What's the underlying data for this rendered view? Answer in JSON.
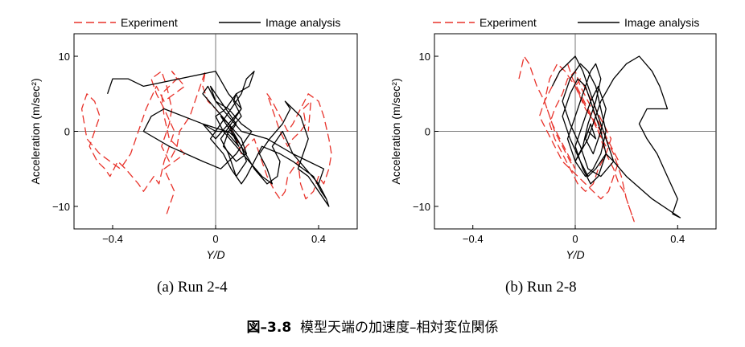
{
  "colors": {
    "experiment": "#e8322a",
    "analysis": "#000000",
    "axis": "#000000",
    "zeroline": "#555555"
  },
  "figure": {
    "number": "図–3.8",
    "title": "模型天端の加速度–相対変位関係"
  },
  "captions": {
    "a": "(a) Run 2-4",
    "b": "(b) Run 2-8"
  },
  "chart_data": [
    {
      "type": "line",
      "id": "run-2-4",
      "caption": "(a) Run 2-4",
      "xlabel": "Y/D",
      "ylabel": "Acceleration (m/sec²)",
      "xlim": [
        -0.55,
        0.55
      ],
      "ylim": [
        -13,
        13
      ],
      "xticks": [
        -0.4,
        0,
        0.4
      ],
      "xtick_labels": [
        "−0.4",
        "0",
        "0.4"
      ],
      "yticks": [
        -10,
        0,
        10
      ],
      "ytick_labels": [
        "−10",
        "0",
        "10"
      ],
      "zero_lines": true,
      "legend": {
        "position": "top",
        "entries": [
          "Experiment",
          "Image analysis"
        ]
      },
      "series": [
        {
          "name": "Experiment",
          "style": "dashed",
          "x": [
            -0.19,
            -0.16,
            -0.2,
            -0.12,
            -0.18,
            -0.2,
            -0.21,
            -0.15,
            -0.17,
            -0.12,
            -0.2,
            -0.23,
            -0.27,
            -0.3,
            -0.33,
            -0.37,
            -0.41,
            -0.45,
            -0.5,
            -0.52,
            -0.5,
            -0.47,
            -0.45,
            -0.47,
            -0.49,
            -0.46,
            -0.43,
            -0.41,
            -0.38,
            -0.35,
            -0.3,
            -0.28,
            -0.24,
            -0.22,
            -0.2,
            -0.18,
            -0.16,
            -0.2,
            -0.23,
            -0.25,
            -0.21,
            -0.19,
            -0.17,
            -0.18,
            -0.21,
            -0.18,
            -0.15,
            -0.14,
            -0.1,
            -0.08,
            -0.06,
            -0.04,
            -0.05,
            -0.03,
            0.0,
            0.05,
            0.08,
            0.1,
            0.12,
            0.15,
            0.18,
            0.2,
            0.23,
            0.25,
            0.27,
            0.28,
            0.3,
            0.32,
            0.33,
            0.35,
            0.38,
            0.4,
            0.42,
            0.44,
            0.45,
            0.44,
            0.42,
            0.4,
            0.36,
            0.33,
            0.3,
            0.28,
            0.25,
            0.22,
            0.2,
            0.22,
            0.25,
            0.28,
            0.3,
            0.33,
            0.35,
            0.34,
            0.37,
            0.36
          ],
          "y": [
            -11,
            -8,
            -5,
            -3,
            -1,
            2,
            5,
            7,
            8,
            6,
            4,
            6,
            3,
            0,
            -3,
            -5,
            -4,
            -3,
            -1,
            3,
            5,
            4,
            2,
            0,
            -2,
            -4,
            -5,
            -6,
            -4,
            -5,
            -7,
            -8,
            -6,
            -7,
            -4,
            -2,
            0,
            3,
            5,
            7,
            8,
            6,
            3,
            1,
            -2,
            -4,
            -2,
            0,
            2,
            4,
            6,
            8,
            6,
            4,
            3,
            1,
            -1,
            -3,
            -2,
            -1,
            -4,
            -6,
            -8,
            -9,
            -8,
            -6,
            -5,
            -4,
            -7,
            -9,
            -8,
            -6,
            -7,
            -5,
            -3,
            -1,
            2,
            4,
            5,
            3,
            1,
            0,
            2,
            4,
            5,
            3,
            0,
            -2,
            -1,
            0,
            1,
            3,
            4,
            0
          ]
        },
        {
          "name": "Image analysis",
          "style": "solid",
          "x": [
            -0.42,
            -0.4,
            -0.34,
            -0.28,
            0.0,
            0.05,
            0.1,
            0.05,
            0.0,
            -0.05,
            -0.2,
            -0.25,
            -0.28,
            -0.18,
            -0.05,
            0.02,
            0.08,
            0.12,
            0.14,
            0.1,
            0.05,
            0.0,
            -0.03,
            -0.05,
            0.0,
            0.05,
            0.1,
            0.15,
            0.2,
            0.24,
            0.25,
            0.22,
            0.26,
            0.3,
            0.35,
            0.4,
            0.43,
            0.41,
            0.38,
            0.3,
            0.25,
            0.18,
            0.15,
            0.12,
            0.1,
            0.06,
            0.03,
            -0.02,
            0.02,
            0.06,
            0.1,
            0.12,
            0.15,
            0.13,
            0.08,
            0.04,
            0.0,
            0.03,
            0.08,
            0.13,
            0.18,
            0.22,
            0.2,
            0.17,
            0.21,
            0.26,
            0.29,
            0.27,
            0.3,
            0.33,
            0.36,
            0.34,
            0.32,
            0.36,
            0.4,
            0.44,
            0.43,
            0.4,
            0.42,
            0.3,
            0.2,
            0.1,
            0.05,
            0.0,
            -0.02,
            0.04,
            0.08,
            0.06,
            0.1,
            0.12,
            0.08,
            0.05,
            0.02,
            0.06,
            0.1,
            0.08,
            0.07,
            0.1,
            0.05,
            0.03,
            0.08,
            0.12,
            0.1,
            0.05,
            0.02,
            0.06,
            0.09,
            0.04,
            -0.05,
            0.0,
            0.05,
            0.08,
            0.06
          ],
          "y": [
            5,
            7,
            7,
            6,
            8,
            5,
            3,
            1,
            -1,
            1,
            3,
            2,
            0,
            -2,
            -4,
            -5,
            -3,
            -1,
            0,
            1,
            3,
            4,
            6,
            5,
            3,
            1,
            -2,
            -5,
            -7,
            -6,
            -4,
            -2,
            0,
            -3,
            -5,
            -7,
            -9,
            -8,
            -6,
            -4,
            -3,
            -2,
            -4,
            -6,
            -7,
            -5,
            -3,
            -1,
            1,
            3,
            5,
            7,
            8,
            6,
            5,
            3,
            2,
            0,
            -2,
            -4,
            -6,
            -7,
            -5,
            -3,
            -1,
            1,
            3,
            4,
            3,
            2,
            -1,
            -3,
            -5,
            -6,
            -8,
            -10,
            -9,
            -7,
            -5,
            -3,
            -1,
            0,
            2,
            4,
            6,
            3,
            1,
            0,
            -2,
            -4,
            -6,
            -3,
            -1,
            1,
            3,
            5,
            4,
            2,
            0,
            -2,
            -4,
            -3,
            -1,
            1,
            2,
            0,
            -2,
            0,
            1,
            0,
            0,
            -1,
            0
          ]
        }
      ]
    },
    {
      "type": "line",
      "id": "run-2-8",
      "caption": "(b) Run 2-8",
      "xlabel": "Y/D",
      "ylabel": "Acceleration (m/sec²)",
      "xlim": [
        -0.55,
        0.55
      ],
      "ylim": [
        -13,
        13
      ],
      "xticks": [
        -0.4,
        0,
        0.4
      ],
      "xtick_labels": [
        "−0.4",
        "0",
        "0.4"
      ],
      "yticks": [
        -10,
        0,
        10
      ],
      "ytick_labels": [
        "−10",
        "0",
        "10"
      ],
      "zero_lines": true,
      "legend": {
        "position": "top",
        "entries": [
          "Experiment",
          "Image analysis"
        ]
      },
      "series": [
        {
          "name": "Experiment",
          "style": "dashed",
          "x": [
            -0.22,
            -0.2,
            -0.18,
            -0.15,
            -0.12,
            -0.1,
            -0.08,
            -0.05,
            -0.02,
            0.0,
            -0.03,
            -0.06,
            -0.09,
            -0.12,
            -0.1,
            -0.07,
            -0.04,
            0.0,
            0.04,
            0.08,
            0.12,
            0.15,
            0.18,
            0.2,
            0.22,
            0.23,
            0.21,
            0.19,
            0.17,
            0.15,
            0.12,
            0.1,
            0.08,
            0.05,
            0.02,
            -0.01,
            -0.03,
            -0.06,
            -0.09,
            -0.12,
            -0.14,
            -0.11,
            -0.08,
            -0.05,
            -0.02,
            0.01,
            0.04,
            0.07,
            0.1,
            0.13,
            0.15,
            0.17,
            0.14,
            0.11,
            0.08,
            0.05,
            0.02,
            0.0,
            -0.03,
            -0.05,
            -0.08,
            -0.1,
            -0.08,
            -0.05,
            -0.02,
            0.01,
            0.04,
            0.07,
            0.09,
            0.12,
            0.14,
            0.11,
            0.08,
            0.05,
            0.02,
            0.0,
            0.03,
            0.06,
            0.09,
            0.12
          ],
          "y": [
            7,
            10,
            9,
            6,
            4,
            2,
            0,
            -2,
            -4,
            -5,
            -3,
            -1,
            1,
            4,
            7,
            9,
            8,
            6,
            3,
            1,
            -1,
            -3,
            -6,
            -9,
            -11,
            -12,
            -10,
            -8,
            -7,
            -5,
            -3,
            -1,
            1,
            3,
            5,
            7,
            9,
            8,
            6,
            4,
            2,
            0,
            -2,
            -4,
            -5,
            -6,
            -7,
            -8,
            -9,
            -8,
            -6,
            -4,
            -2,
            0,
            2,
            4,
            6,
            8,
            7,
            5,
            3,
            1,
            -1,
            -3,
            -5,
            -7,
            -8,
            -7,
            -5,
            -3,
            -1,
            1,
            3,
            5,
            7,
            6,
            4,
            2,
            0,
            -2
          ]
        },
        {
          "name": "Image analysis",
          "style": "solid",
          "x": [
            -0.09,
            -0.06,
            -0.03,
            0.0,
            0.03,
            0.06,
            0.09,
            0.12,
            0.15,
            0.1,
            0.05,
            0.02,
            -0.02,
            -0.05,
            -0.02,
            0.02,
            0.05,
            0.08,
            0.1,
            0.12,
            0.1,
            0.07,
            0.04,
            0.0,
            -0.03,
            0.0,
            0.03,
            0.06,
            0.08,
            0.1,
            0.08,
            0.05,
            0.03,
            0.0,
            0.05,
            0.1,
            0.15,
            0.2,
            0.25,
            0.3,
            0.33,
            0.35,
            0.36,
            0.28,
            0.25,
            0.28,
            0.32,
            0.36,
            0.4,
            0.38,
            0.41,
            0.3,
            0.2,
            0.15,
            0.12,
            0.08,
            0.05,
            0.02,
            -0.02,
            -0.05,
            -0.02,
            0.01,
            0.04,
            0.07,
            0.1,
            0.12,
            0.09,
            0.06,
            0.03,
            0.0,
            0.03,
            0.06,
            0.09,
            0.12,
            0.1,
            0.07,
            0.04,
            0.06,
            0.08,
            0.05
          ],
          "y": [
            6,
            8,
            9,
            10,
            8,
            5,
            2,
            -1,
            -4,
            -6,
            -5,
            -2,
            1,
            4,
            7,
            9,
            8,
            6,
            3,
            0,
            -3,
            -5,
            -6,
            -4,
            -1,
            2,
            5,
            8,
            9,
            7,
            4,
            1,
            -2,
            -4,
            -1,
            4,
            7,
            9,
            10,
            8,
            6,
            4,
            3,
            3,
            1,
            -1,
            -3,
            -6,
            -9,
            -11,
            -11.5,
            -9,
            -6,
            -4,
            -3,
            -5,
            -6,
            -4,
            -1,
            2,
            5,
            7,
            6,
            3,
            0,
            -3,
            -6,
            -7,
            -5,
            -2,
            1,
            4,
            6,
            3,
            0,
            -3,
            -1,
            1,
            -1,
            0
          ]
        }
      ]
    }
  ]
}
